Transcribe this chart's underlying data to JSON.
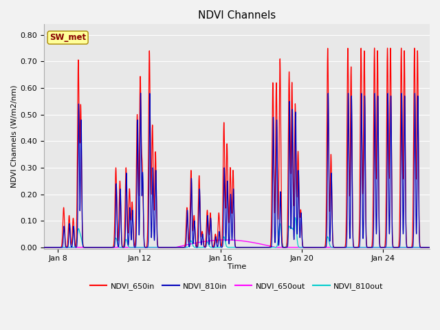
{
  "title": "NDVI Channels",
  "xlabel": "Time",
  "ylabel": "NDVI Channels (W/m2/nm)",
  "ylim": [
    -0.005,
    0.84
  ],
  "xlim": [
    7.3,
    26.3
  ],
  "xticks": [
    8,
    12,
    16,
    20,
    24
  ],
  "xticklabels": [
    "Jan 8",
    "Jan 12",
    "Jan 16",
    "Jan 20",
    "Jan 24"
  ],
  "yticks": [
    0.0,
    0.1,
    0.2,
    0.3,
    0.4,
    0.5,
    0.6,
    0.7,
    0.8
  ],
  "legend_labels": [
    "NDVI_650in",
    "NDVI_810in",
    "NDVI_650out",
    "NDVI_810out"
  ],
  "legend_colors": [
    "#ff0000",
    "#0000bb",
    "#ff00ff",
    "#00cccc"
  ],
  "annotation_text": "SW_met",
  "annotation_color": "#880000",
  "annotation_bg": "#ffff99",
  "background_color": "#e8e8e8",
  "grid_color": "#ffffff",
  "title_fontsize": 11,
  "label_fontsize": 8,
  "tick_fontsize": 8,
  "spikes_red": [
    [
      8.28,
      0.15
    ],
    [
      8.55,
      0.12
    ],
    [
      8.75,
      0.11
    ],
    [
      9.0,
      0.7
    ],
    [
      9.12,
      0.53
    ],
    [
      10.85,
      0.3
    ],
    [
      11.05,
      0.25
    ],
    [
      11.35,
      0.3
    ],
    [
      11.52,
      0.22
    ],
    [
      11.65,
      0.17
    ],
    [
      11.9,
      0.5
    ],
    [
      12.05,
      0.63
    ],
    [
      12.15,
      0.29
    ],
    [
      12.5,
      0.74
    ],
    [
      12.65,
      0.46
    ],
    [
      12.8,
      0.36
    ],
    [
      14.35,
      0.15
    ],
    [
      14.55,
      0.29
    ],
    [
      14.7,
      0.12
    ],
    [
      14.95,
      0.27
    ],
    [
      15.1,
      0.06
    ],
    [
      15.35,
      0.14
    ],
    [
      15.5,
      0.13
    ],
    [
      15.75,
      0.05
    ],
    [
      15.92,
      0.13
    ],
    [
      16.17,
      0.47
    ],
    [
      16.32,
      0.39
    ],
    [
      16.48,
      0.3
    ],
    [
      16.62,
      0.29
    ],
    [
      18.58,
      0.62
    ],
    [
      18.75,
      0.62
    ],
    [
      18.93,
      0.71
    ],
    [
      19.38,
      0.66
    ],
    [
      19.52,
      0.62
    ],
    [
      19.68,
      0.54
    ],
    [
      19.82,
      0.36
    ],
    [
      19.95,
      0.14
    ],
    [
      21.28,
      0.75
    ],
    [
      21.44,
      0.35
    ],
    [
      22.27,
      0.75
    ],
    [
      22.43,
      0.68
    ],
    [
      22.92,
      0.75
    ],
    [
      23.08,
      0.74
    ],
    [
      23.58,
      0.75
    ],
    [
      23.73,
      0.74
    ],
    [
      24.22,
      0.75
    ],
    [
      24.37,
      0.75
    ],
    [
      24.9,
      0.75
    ],
    [
      25.05,
      0.74
    ],
    [
      25.55,
      0.75
    ],
    [
      25.7,
      0.74
    ]
  ],
  "spikes_blue": [
    [
      8.3,
      0.08
    ],
    [
      8.57,
      0.09
    ],
    [
      8.77,
      0.08
    ],
    [
      9.02,
      0.54
    ],
    [
      9.14,
      0.48
    ],
    [
      10.87,
      0.24
    ],
    [
      11.07,
      0.22
    ],
    [
      11.37,
      0.28
    ],
    [
      11.54,
      0.15
    ],
    [
      11.67,
      0.14
    ],
    [
      11.92,
      0.48
    ],
    [
      12.07,
      0.58
    ],
    [
      12.17,
      0.28
    ],
    [
      12.52,
      0.58
    ],
    [
      12.67,
      0.3
    ],
    [
      12.82,
      0.29
    ],
    [
      14.37,
      0.14
    ],
    [
      14.57,
      0.26
    ],
    [
      14.72,
      0.1
    ],
    [
      14.97,
      0.22
    ],
    [
      15.12,
      0.05
    ],
    [
      15.37,
      0.12
    ],
    [
      15.52,
      0.11
    ],
    [
      15.77,
      0.04
    ],
    [
      15.94,
      0.06
    ],
    [
      16.19,
      0.3
    ],
    [
      16.34,
      0.25
    ],
    [
      16.5,
      0.2
    ],
    [
      16.64,
      0.22
    ],
    [
      18.6,
      0.49
    ],
    [
      18.77,
      0.48
    ],
    [
      18.95,
      0.21
    ],
    [
      19.4,
      0.55
    ],
    [
      19.54,
      0.52
    ],
    [
      19.7,
      0.51
    ],
    [
      19.84,
      0.29
    ],
    [
      19.97,
      0.13
    ],
    [
      21.3,
      0.58
    ],
    [
      21.46,
      0.28
    ],
    [
      22.29,
      0.58
    ],
    [
      22.45,
      0.57
    ],
    [
      22.94,
      0.58
    ],
    [
      23.1,
      0.57
    ],
    [
      23.6,
      0.58
    ],
    [
      23.75,
      0.57
    ],
    [
      24.24,
      0.58
    ],
    [
      24.39,
      0.57
    ],
    [
      24.92,
      0.58
    ],
    [
      25.07,
      0.57
    ],
    [
      25.57,
      0.58
    ],
    [
      25.72,
      0.57
    ]
  ],
  "magenta_range": [
    13.8,
    18.7
  ],
  "magenta_peak": 0.028,
  "cyan_spikes": [
    [
      9.0,
      0.065
    ],
    [
      9.12,
      0.035
    ],
    [
      10.85,
      0.035
    ],
    [
      11.35,
      0.03
    ],
    [
      14.55,
      0.025
    ],
    [
      15.35,
      0.02
    ],
    [
      16.17,
      0.04
    ],
    [
      18.93,
      0.09
    ],
    [
      19.38,
      0.075
    ],
    [
      19.52,
      0.065
    ],
    [
      19.68,
      0.11
    ],
    [
      21.28,
      0.04
    ]
  ]
}
